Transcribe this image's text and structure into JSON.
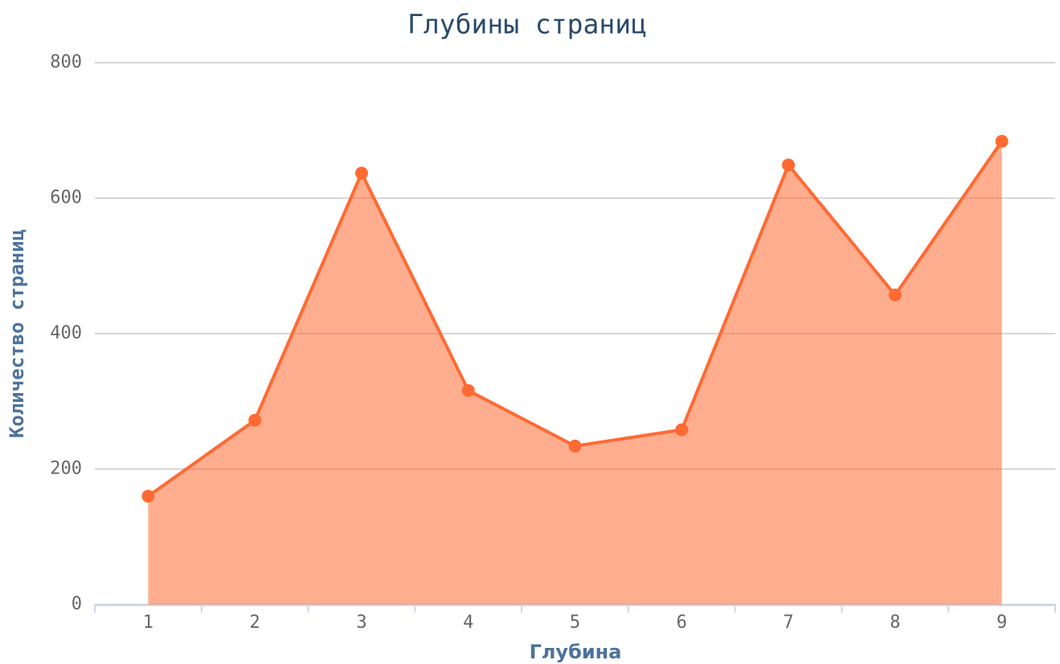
{
  "chart_data": {
    "type": "area",
    "title": "Глубины страниц",
    "x_label": "Глубина",
    "y_label": "Количество страниц",
    "categories": [
      "1",
      "2",
      "3",
      "4",
      "5",
      "6",
      "7",
      "8",
      "9"
    ],
    "values": [
      160,
      272,
      637,
      316,
      234,
      258,
      649,
      457,
      684
    ],
    "color": "#ff6a33",
    "ylim": [
      0,
      800
    ],
    "yticks": [
      0,
      200,
      400,
      600,
      800
    ],
    "grid": true
  }
}
